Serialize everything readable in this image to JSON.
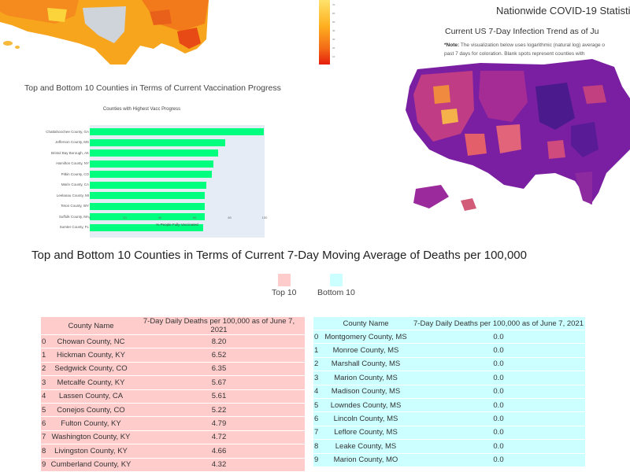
{
  "vaccination": {
    "section_title": "Top and Bottom 10 Counties in Terms of Current Vaccination Progress",
    "chart_data": {
      "type": "bar",
      "title": "Counties with Highest Vacc Progress",
      "xlabel": "% People Fully Vaccinated",
      "ylabel": "",
      "orientation": "horizontal",
      "categories": [
        "Chattahoochee County, GA",
        "Jefferson County, MS",
        "Bristol Bay Borough, AK",
        "Hamilton County, NY",
        "Pitkin County, CO",
        "Marin County, CA",
        "Leelanau County, MI",
        "Teton County, WY",
        "Suffolk County, MA",
        "Sumter County, FL"
      ],
      "values": [
        100,
        78,
        74,
        71,
        70,
        67,
        66,
        66,
        66,
        65
      ],
      "xlim": [
        0,
        100
      ],
      "xticks": [
        "0",
        "20",
        "40",
        "60",
        "80",
        "100"
      ],
      "bar_color": "#00ff7f",
      "plot_bg": "#e5ecf6"
    }
  },
  "scale_ticks": [
    "70",
    "60",
    "50",
    "40",
    "30",
    "20",
    "10"
  ],
  "infection_map": {
    "title": "Nationwide COVID-19 Statisti",
    "subtitle": "Current US 7-Day Infection Trend as of Ju",
    "note_label": "*Note:",
    "note_line1": "The visualization below uses logarithmic (natural log) average o",
    "note_line2": "past 7 days for coloration. Blank spots represent counties with"
  },
  "deaths": {
    "title": "Top and Bottom 10 Counties in Terms of Current 7-Day Moving Average of Deaths per 100,000",
    "legend_top": "Top 10",
    "legend_bottom": "Bottom 10",
    "colors": {
      "top": "#ffcccc",
      "bottom": "#ccffff"
    },
    "columns": [
      "County Name",
      "7-Day Daily Deaths per 100,000 as of June 7, 2021"
    ],
    "top_rows": [
      [
        "0",
        "Chowan County, NC",
        "8.20"
      ],
      [
        "1",
        "Hickman County, KY",
        "6.52"
      ],
      [
        "2",
        "Sedgwick County, CO",
        "6.35"
      ],
      [
        "3",
        "Metcalfe County, KY",
        "5.67"
      ],
      [
        "4",
        "Lassen County, CA",
        "5.61"
      ],
      [
        "5",
        "Conejos County, CO",
        "5.22"
      ],
      [
        "6",
        "Fulton County, KY",
        "4.79"
      ],
      [
        "7",
        "Washington County, KY",
        "4.72"
      ],
      [
        "8",
        "Livingston County, KY",
        "4.66"
      ],
      [
        "9",
        "Cumberland County, KY",
        "4.32"
      ]
    ],
    "bottom_rows": [
      [
        "0",
        "Montgomery County, MS",
        "0.0"
      ],
      [
        "1",
        "Monroe County, MS",
        "0.0"
      ],
      [
        "2",
        "Marshall County, MS",
        "0.0"
      ],
      [
        "3",
        "Marion County, MS",
        "0.0"
      ],
      [
        "4",
        "Madison County, MS",
        "0.0"
      ],
      [
        "5",
        "Lowndes County, MS",
        "0.0"
      ],
      [
        "6",
        "Lincoln County, MS",
        "0.0"
      ],
      [
        "7",
        "Leflore County, MS",
        "0.0"
      ],
      [
        "8",
        "Leake County, MS",
        "0.0"
      ],
      [
        "9",
        "Marion County, MO",
        "0.0"
      ]
    ]
  }
}
